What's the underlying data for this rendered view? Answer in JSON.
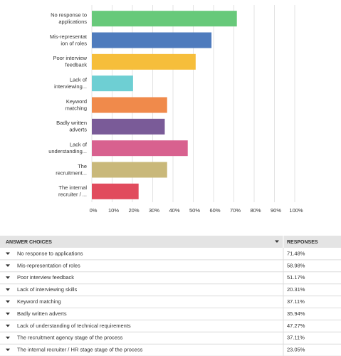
{
  "chart_data": {
    "type": "bar",
    "orientation": "horizontal",
    "categories": [
      [
        "No response to",
        "applications"
      ],
      [
        "Mis-representat",
        "ion of roles"
      ],
      [
        "Poor interview",
        "feedback"
      ],
      [
        "Lack of",
        "interviewing..."
      ],
      [
        "Keyword",
        "matching"
      ],
      [
        "Badly written",
        "adverts"
      ],
      [
        "Lack of",
        "understanding..."
      ],
      [
        "The",
        "recruitment..."
      ],
      [
        "The internal",
        "recruiter / ..."
      ]
    ],
    "values": [
      71.48,
      58.98,
      51.17,
      20.31,
      37.11,
      35.94,
      47.27,
      37.11,
      23.05
    ],
    "colors": [
      "#67c97a",
      "#4e7bbd",
      "#f6be3b",
      "#6ecfd3",
      "#f08a4b",
      "#7a5b98",
      "#d8618f",
      "#c9b87a",
      "#e14b5d"
    ],
    "xlim": [
      0,
      100
    ],
    "xticks": [
      {
        "value": 0,
        "label": "0%"
      },
      {
        "value": 10,
        "label": "10%"
      },
      {
        "value": 20,
        "label": "20%"
      },
      {
        "value": 30,
        "label": "30%"
      },
      {
        "value": 40,
        "label": "40%"
      },
      {
        "value": 50,
        "label": "50%"
      },
      {
        "value": 60,
        "label": "60%"
      },
      {
        "value": 70,
        "label": "70%"
      },
      {
        "value": 80,
        "label": "80%"
      },
      {
        "value": 90,
        "label": "90%"
      },
      {
        "value": 100,
        "label": "100%"
      }
    ],
    "grid": true
  },
  "table": {
    "header": [
      "ANSWER CHOICES",
      "RESPONSES"
    ],
    "rows": [
      [
        "No response to applications",
        "71.48%"
      ],
      [
        "Mis-representation of roles",
        "58.98%"
      ],
      [
        "Poor interview feedback",
        "51.17%"
      ],
      [
        "Lack of interviewing skills",
        "20.31%"
      ],
      [
        "Keyword matching",
        "37.11%"
      ],
      [
        "Badly written adverts",
        "35.94%"
      ],
      [
        "Lack of understanding of technical requirements",
        "47.27%"
      ],
      [
        "The recruitment agency stage of the process",
        "37.11%"
      ],
      [
        "The internal recruiter / HR stage stage of the process",
        "23.05%"
      ]
    ]
  }
}
